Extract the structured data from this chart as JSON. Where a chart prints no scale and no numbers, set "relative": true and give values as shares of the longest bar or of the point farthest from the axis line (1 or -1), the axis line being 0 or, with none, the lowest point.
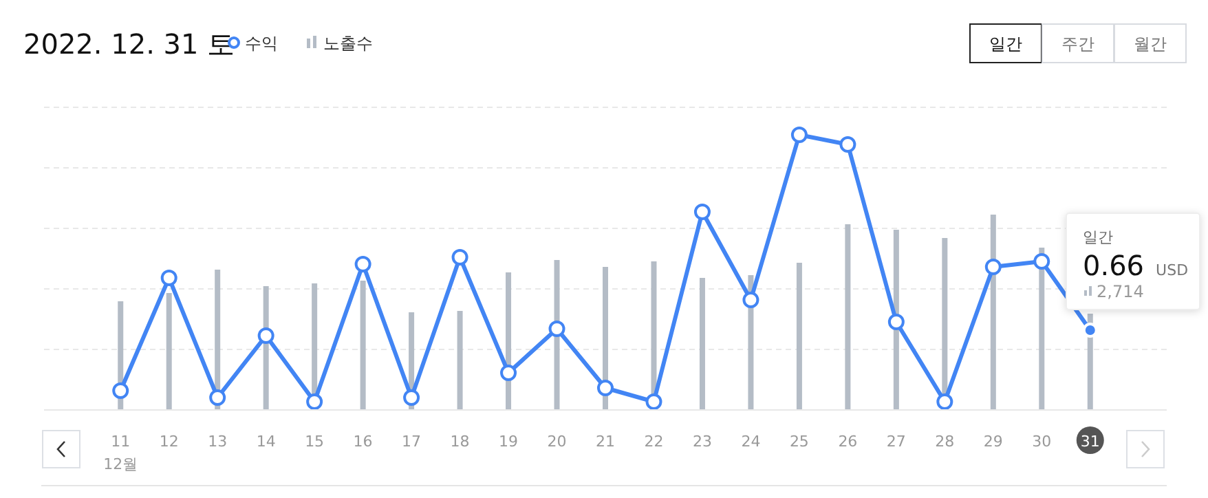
{
  "chart_data": {
    "type": "line",
    "title": "2022. 12. 31 토",
    "relative": true,
    "grid": "y",
    "legend": "top left",
    "marker": "circle",
    "categories": [
      "11",
      "12",
      "13",
      "14",
      "15",
      "16",
      "17",
      "18",
      "19",
      "20",
      "21",
      "22",
      "23",
      "24",
      "25",
      "26",
      "27",
      "28",
      "29",
      "30",
      "31"
    ],
    "series": [
      {
        "name": "수익",
        "color": "#4285f4",
        "values": [
          0.07,
          0.48,
          0.045,
          0.27,
          0.03,
          0.53,
          0.045,
          0.555,
          0.135,
          0.295,
          0.08,
          0.03,
          0.72,
          0.4,
          1,
          0.965,
          0.32,
          0.03,
          0.52,
          0.54,
          0.29
        ]
      },
      {
        "name": "노출수",
        "type": "bar",
        "color": "#b4bcc6",
        "values": [
          0.395,
          0.425,
          0.51,
          0.45,
          0.46,
          0.47,
          0.355,
          0.36,
          0.5,
          0.545,
          0.52,
          0.54,
          0.48,
          0.49,
          0.535,
          0.675,
          0.655,
          0.625,
          0.71,
          0.59,
          0.35
        ]
      }
    ],
    "annotations": [
      "12월",
      "일간",
      "주간",
      "월간",
      "일간",
      "0.66 USD",
      "2,714"
    ]
  }
}
